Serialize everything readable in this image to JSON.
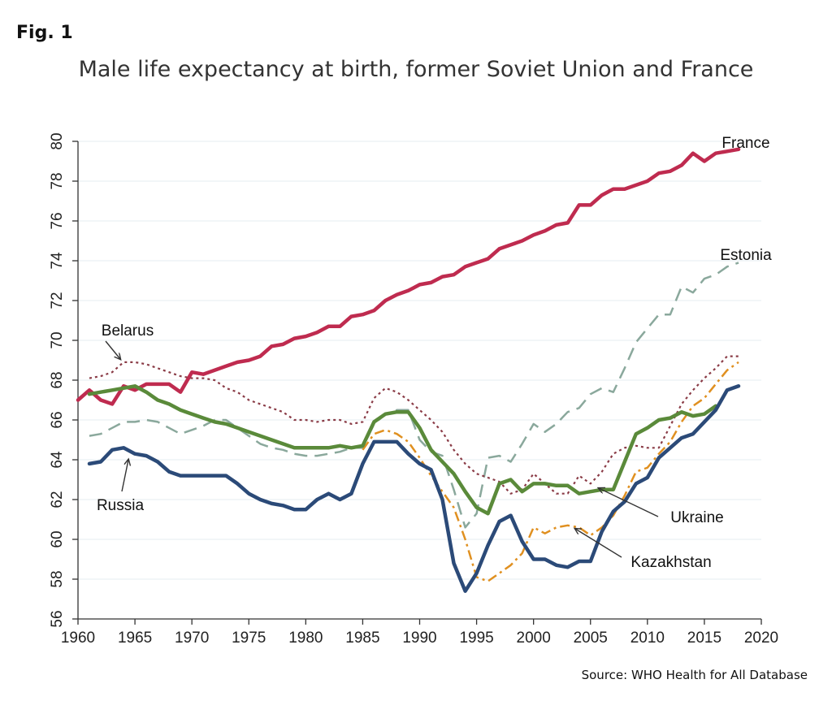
{
  "figure_label": "Fig. 1",
  "source_note": "Source: WHO Health for All Database",
  "chart_data": {
    "type": "line",
    "title": "Male life expectancy at birth, former Soviet Union and France",
    "xlabel": "",
    "ylabel": "",
    "xlim": [
      1960,
      2020
    ],
    "ylim": [
      56,
      80
    ],
    "x_ticks": [
      1960,
      1965,
      1970,
      1975,
      1980,
      1985,
      1990,
      1995,
      2000,
      2005,
      2010,
      2015,
      2020
    ],
    "y_ticks": [
      56,
      58,
      60,
      62,
      64,
      66,
      68,
      70,
      72,
      74,
      76,
      78,
      80
    ],
    "grid": "horizontal",
    "series": [
      {
        "name": "France",
        "color": "#bf2b4f",
        "style": "solid-thick",
        "x": [
          1960,
          1961,
          1962,
          1963,
          1964,
          1965,
          1966,
          1967,
          1968,
          1969,
          1970,
          1971,
          1972,
          1973,
          1974,
          1975,
          1976,
          1977,
          1978,
          1979,
          1980,
          1981,
          1982,
          1983,
          1984,
          1985,
          1986,
          1987,
          1988,
          1989,
          1990,
          1991,
          1992,
          1993,
          1994,
          1995,
          1996,
          1997,
          1998,
          1999,
          2000,
          2001,
          2002,
          2003,
          2004,
          2005,
          2006,
          2007,
          2008,
          2009,
          2010,
          2011,
          2012,
          2013,
          2014,
          2015,
          2016,
          2017,
          2018
        ],
        "y": [
          67.0,
          67.5,
          67.0,
          66.8,
          67.7,
          67.5,
          67.8,
          67.8,
          67.8,
          67.4,
          68.4,
          68.3,
          68.5,
          68.7,
          68.9,
          69.0,
          69.2,
          69.7,
          69.8,
          70.1,
          70.2,
          70.4,
          70.7,
          70.7,
          71.2,
          71.3,
          71.5,
          72.0,
          72.3,
          72.5,
          72.8,
          72.9,
          73.2,
          73.3,
          73.7,
          73.9,
          74.1,
          74.6,
          74.8,
          75.0,
          75.3,
          75.5,
          75.8,
          75.9,
          76.8,
          76.8,
          77.3,
          77.6,
          77.6,
          77.8,
          78.0,
          78.4,
          78.5,
          78.8,
          79.4,
          79.0,
          79.4,
          79.5,
          79.6
        ]
      },
      {
        "name": "Estonia",
        "color": "#8aa89c",
        "style": "long-dash",
        "x": [
          1961,
          1962,
          1963,
          1964,
          1965,
          1966,
          1967,
          1968,
          1969,
          1970,
          1971,
          1972,
          1973,
          1974,
          1975,
          1976,
          1977,
          1978,
          1979,
          1980,
          1981,
          1982,
          1983,
          1984,
          1985,
          1986,
          1987,
          1988,
          1989,
          1990,
          1991,
          1992,
          1993,
          1994,
          1995,
          1996,
          1997,
          1998,
          1999,
          2000,
          2001,
          2002,
          2003,
          2004,
          2005,
          2006,
          2007,
          2008,
          2009,
          2010,
          2011,
          2012,
          2013,
          2014,
          2015,
          2016,
          2017,
          2018
        ],
        "y": [
          65.2,
          65.3,
          65.6,
          65.9,
          65.9,
          66.0,
          65.9,
          65.6,
          65.3,
          65.5,
          65.7,
          66.0,
          66.0,
          65.6,
          65.2,
          64.8,
          64.6,
          64.5,
          64.3,
          64.2,
          64.2,
          64.3,
          64.4,
          64.6,
          64.6,
          65.8,
          66.3,
          66.5,
          66.5,
          65.0,
          64.4,
          64.2,
          62.5,
          60.6,
          61.3,
          64.1,
          64.2,
          63.9,
          64.8,
          65.8,
          65.4,
          65.8,
          66.4,
          66.6,
          67.3,
          67.6,
          67.4,
          68.6,
          69.9,
          70.6,
          71.3,
          71.3,
          72.7,
          72.4,
          73.1,
          73.3,
          73.7,
          73.9
        ]
      },
      {
        "name": "Belarus",
        "color": "#8a3b46",
        "style": "dotted",
        "x": [
          1961,
          1962,
          1963,
          1964,
          1965,
          1966,
          1967,
          1968,
          1969,
          1970,
          1971,
          1972,
          1973,
          1974,
          1975,
          1976,
          1977,
          1978,
          1979,
          1980,
          1981,
          1982,
          1983,
          1984,
          1985,
          1986,
          1987,
          1988,
          1989,
          1990,
          1991,
          1992,
          1993,
          1994,
          1995,
          1996,
          1997,
          1998,
          1999,
          2000,
          2001,
          2002,
          2003,
          2004,
          2005,
          2006,
          2007,
          2008,
          2009,
          2010,
          2011,
          2012,
          2013,
          2014,
          2015,
          2016,
          2017,
          2018
        ],
        "y": [
          68.1,
          68.2,
          68.4,
          68.9,
          68.9,
          68.8,
          68.6,
          68.4,
          68.2,
          68.1,
          68.1,
          68.0,
          67.6,
          67.4,
          67.0,
          66.8,
          66.6,
          66.4,
          66.0,
          66.0,
          65.9,
          66.0,
          66.0,
          65.8,
          65.9,
          67.1,
          67.6,
          67.4,
          67.0,
          66.5,
          66.0,
          65.4,
          64.5,
          63.8,
          63.3,
          63.1,
          62.9,
          62.3,
          62.5,
          63.3,
          62.8,
          62.3,
          62.3,
          63.2,
          62.8,
          63.4,
          64.3,
          64.6,
          64.7,
          64.6,
          64.6,
          65.7,
          66.8,
          67.5,
          68.1,
          68.6,
          69.2,
          69.2
        ]
      },
      {
        "name": "Kazakhstan",
        "color": "#e09020",
        "style": "dash-dot",
        "x": [
          1985,
          1986,
          1987,
          1988,
          1989,
          1990,
          1991,
          1992,
          1993,
          1994,
          1995,
          1996,
          1997,
          1998,
          1999,
          2000,
          2001,
          2002,
          2003,
          2004,
          2005,
          2006,
          2007,
          2008,
          2009,
          2010,
          2011,
          2012,
          2013,
          2014,
          2015,
          2016,
          2017,
          2018
        ],
        "y": [
          64.5,
          65.3,
          65.5,
          65.3,
          64.9,
          64.1,
          63.2,
          62.4,
          61.6,
          60.0,
          58.1,
          57.9,
          58.3,
          58.7,
          59.3,
          60.6,
          60.3,
          60.6,
          60.7,
          60.6,
          60.2,
          60.6,
          61.2,
          62.2,
          63.4,
          63.6,
          64.3,
          64.9,
          65.9,
          66.7,
          67.1,
          67.8,
          68.5,
          68.9
        ]
      },
      {
        "name": "Ukraine",
        "color": "#5a8a3a",
        "style": "solid-thick",
        "x": [
          1961,
          1962,
          1963,
          1964,
          1965,
          1966,
          1967,
          1968,
          1969,
          1970,
          1971,
          1972,
          1973,
          1974,
          1975,
          1976,
          1977,
          1978,
          1979,
          1980,
          1981,
          1982,
          1983,
          1984,
          1985,
          1986,
          1987,
          1988,
          1989,
          1990,
          1991,
          1992,
          1993,
          1994,
          1995,
          1996,
          1997,
          1998,
          1999,
          2000,
          2001,
          2002,
          2003,
          2004,
          2005,
          2006,
          2007,
          2008,
          2009,
          2010,
          2011,
          2012,
          2013,
          2014,
          2015,
          2016
        ],
        "y": [
          67.3,
          67.4,
          67.5,
          67.6,
          67.7,
          67.4,
          67.0,
          66.8,
          66.5,
          66.3,
          66.1,
          65.9,
          65.8,
          65.6,
          65.4,
          65.2,
          65.0,
          64.8,
          64.6,
          64.6,
          64.6,
          64.6,
          64.7,
          64.6,
          64.7,
          65.9,
          66.3,
          66.4,
          66.4,
          65.6,
          64.5,
          63.9,
          63.3,
          62.4,
          61.6,
          61.3,
          62.8,
          63.0,
          62.4,
          62.8,
          62.8,
          62.7,
          62.7,
          62.3,
          62.4,
          62.5,
          62.5,
          63.9,
          65.3,
          65.6,
          66.0,
          66.1,
          66.4,
          66.2,
          66.3,
          66.7
        ]
      },
      {
        "name": "Russia",
        "color": "#2b4a78",
        "style": "solid-thick",
        "x": [
          1961,
          1962,
          1963,
          1964,
          1965,
          1966,
          1967,
          1968,
          1969,
          1970,
          1971,
          1972,
          1973,
          1974,
          1975,
          1976,
          1977,
          1978,
          1979,
          1980,
          1981,
          1982,
          1983,
          1984,
          1985,
          1986,
          1987,
          1988,
          1989,
          1990,
          1991,
          1992,
          1993,
          1994,
          1995,
          1996,
          1997,
          1998,
          1999,
          2000,
          2001,
          2002,
          2003,
          2004,
          2005,
          2006,
          2007,
          2008,
          2009,
          2010,
          2011,
          2012,
          2013,
          2014,
          2015,
          2016,
          2017,
          2018
        ],
        "y": [
          63.8,
          63.9,
          64.5,
          64.6,
          64.3,
          64.2,
          63.9,
          63.4,
          63.2,
          63.2,
          63.2,
          63.2,
          63.2,
          62.8,
          62.3,
          62.0,
          61.8,
          61.7,
          61.5,
          61.5,
          62.0,
          62.3,
          62.0,
          62.3,
          63.8,
          64.9,
          64.9,
          64.9,
          64.3,
          63.8,
          63.5,
          62.0,
          58.8,
          57.4,
          58.3,
          59.7,
          60.9,
          61.2,
          59.9,
          59.0,
          59.0,
          58.7,
          58.6,
          58.9,
          58.9,
          60.4,
          61.4,
          61.9,
          62.8,
          63.1,
          64.1,
          64.6,
          65.1,
          65.3,
          65.9,
          66.5,
          67.5,
          67.7
        ]
      }
    ],
    "annotations": [
      {
        "text": "France",
        "series": "France"
      },
      {
        "text": "Estonia",
        "series": "Estonia"
      },
      {
        "text": "Belarus",
        "series": "Belarus"
      },
      {
        "text": "Russia",
        "series": "Russia"
      },
      {
        "text": "Ukraine",
        "series": "Ukraine"
      },
      {
        "text": "Kazakhstan",
        "series": "Kazakhstan"
      }
    ]
  }
}
